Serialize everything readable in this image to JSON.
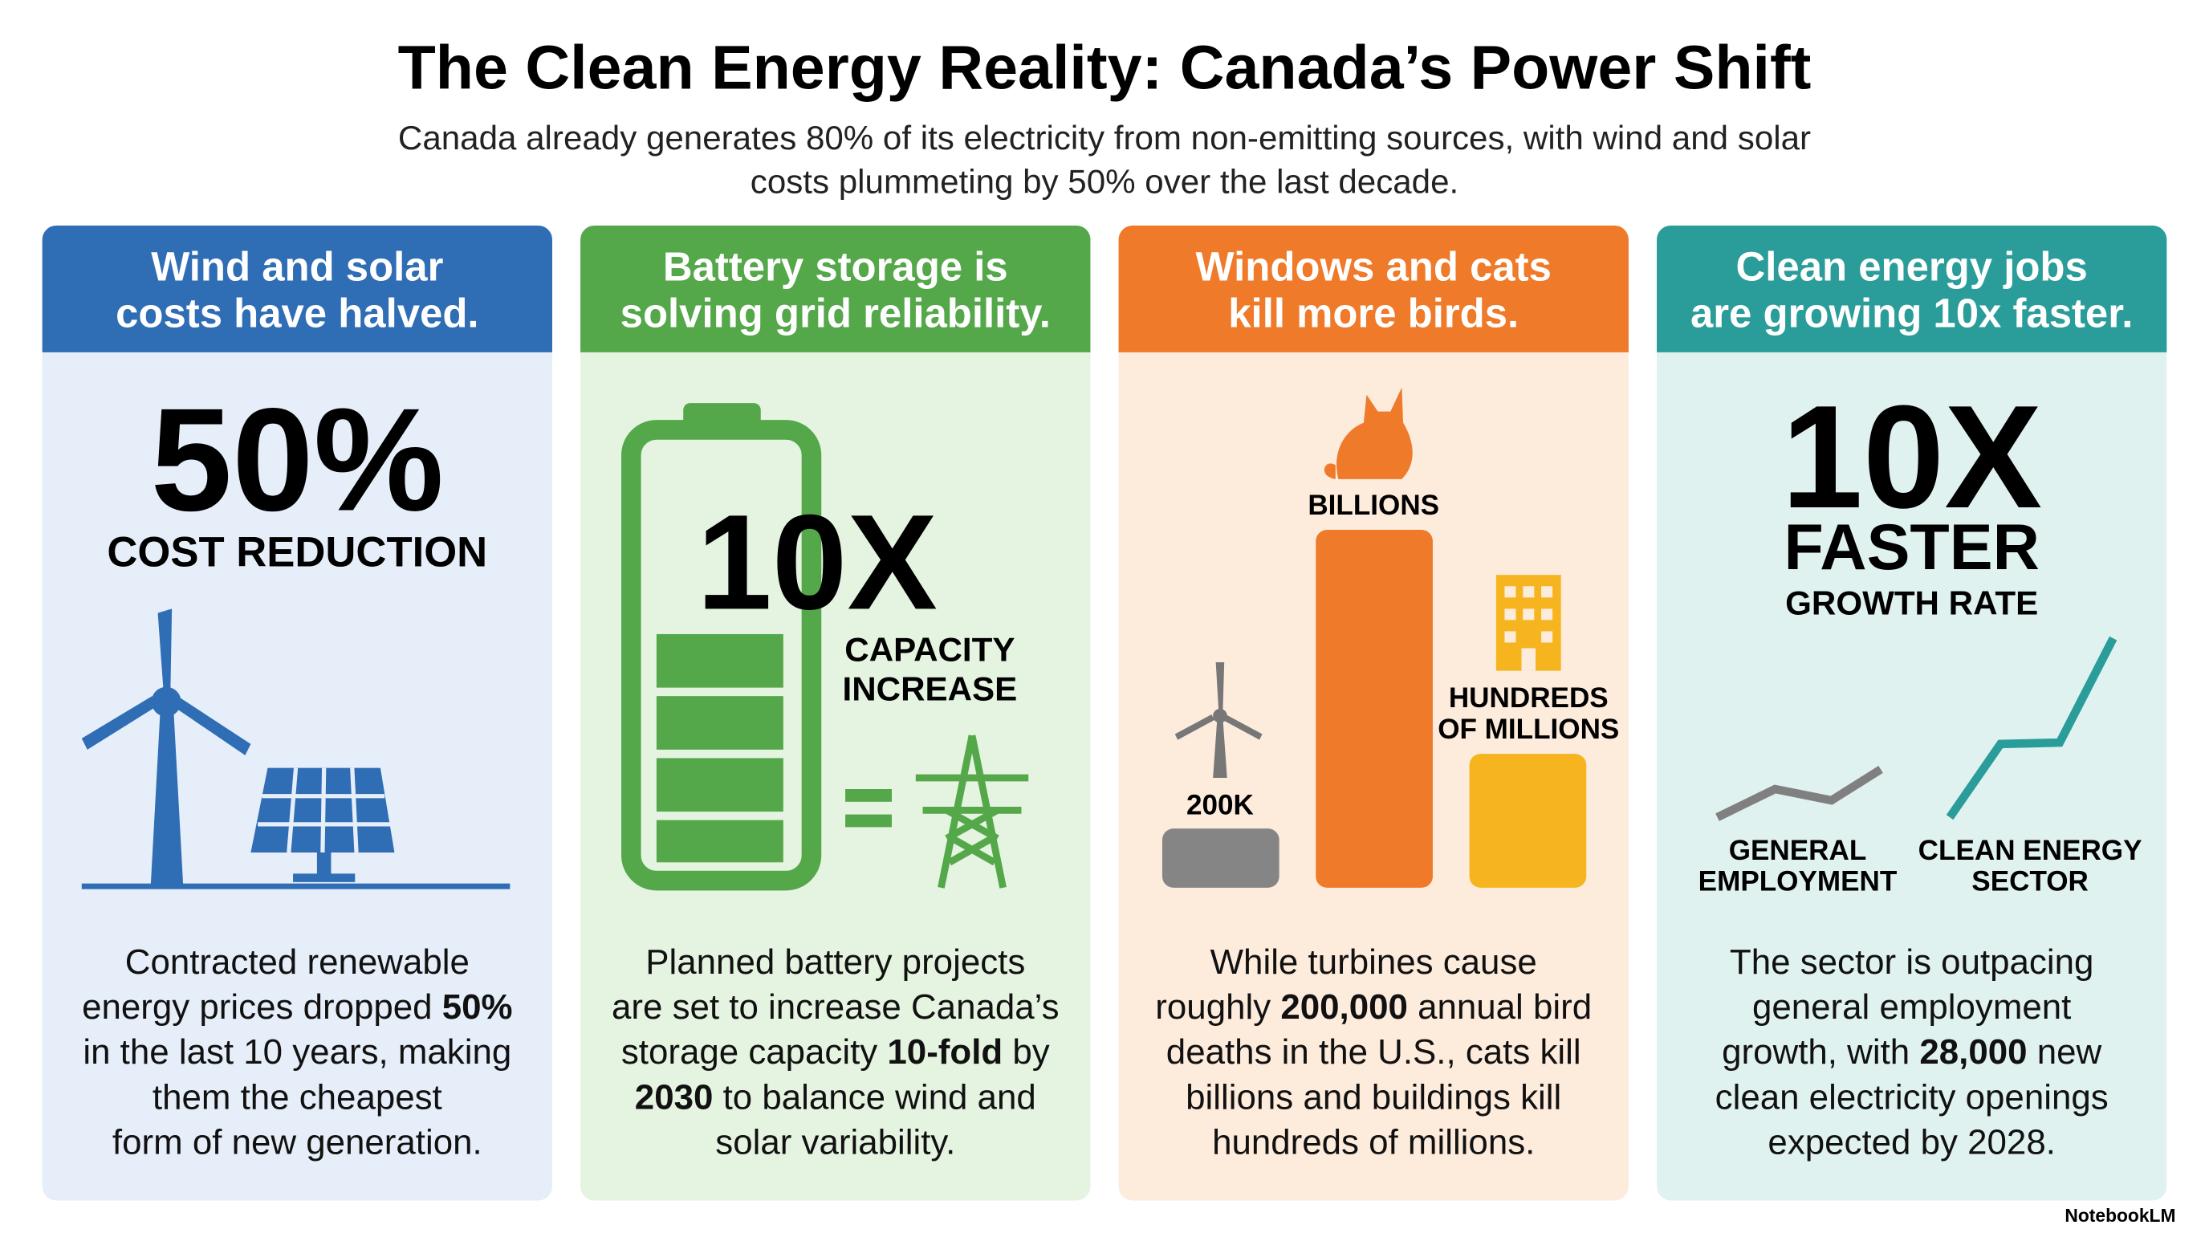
{
  "title": "The Clean Energy Reality: Canada’s Power Shift",
  "subtitle": [
    "Canada already generates 80% of its electricity from non-emitting sources, with wind and solar",
    "costs plummeting by 50% over the last decade."
  ],
  "panels": [
    {
      "color": "#2f6db5",
      "background": "#e6eef9",
      "heading": [
        "Wind and solar",
        "costs have halved."
      ],
      "stat": "50%",
      "stat_caption": "COST REDUCTION",
      "body": [
        [
          {
            "text": "Contracted renewable"
          }
        ],
        [
          {
            "text": "energy prices dropped "
          },
          {
            "text": "50%",
            "bold": true
          }
        ],
        [
          {
            "text": "in the last 10 years, making"
          }
        ],
        [
          {
            "text": "them the cheapest"
          }
        ],
        [
          {
            "text": "form of new generation."
          }
        ]
      ]
    },
    {
      "color": "#55a84a",
      "background": "#e5f3e1",
      "heading": [
        "Battery storage is",
        "solving grid reliability."
      ],
      "stat": "10X",
      "stat_caption": [
        "CAPACITY",
        "INCREASE"
      ],
      "body": [
        [
          {
            "text": "Planned battery projects"
          }
        ],
        [
          {
            "text": "are set to increase Canada’s"
          }
        ],
        [
          {
            "text": "storage capacity "
          },
          {
            "text": "10-fold",
            "bold": true
          },
          {
            "text": " by"
          }
        ],
        [
          {
            "text": "2030",
            "bold": true
          },
          {
            "text": " to balance wind and"
          }
        ],
        [
          {
            "text": "solar variability."
          }
        ]
      ]
    },
    {
      "color": "#ee7a2a",
      "background": "#fdebdc",
      "heading": [
        "Windows and cats",
        "kill more birds."
      ],
      "bar_labels": {
        "cats": "BILLIONS",
        "buildings": [
          "HUNDREDS",
          "OF MILLIONS"
        ],
        "turbines": "200K"
      },
      "body": [
        [
          {
            "text": "While turbines cause"
          }
        ],
        [
          {
            "text": "roughly "
          },
          {
            "text": "200,000",
            "bold": true
          },
          {
            "text": " annual bird"
          }
        ],
        [
          {
            "text": "deaths in the U.S., cats kill"
          }
        ],
        [
          {
            "text": "billions and buildings kill"
          }
        ],
        [
          {
            "text": "hundreds of millions."
          }
        ]
      ]
    },
    {
      "color": "#2a9d9a",
      "background": "#e0f2f0",
      "heading": [
        "Clean energy jobs",
        "are growing 10x faster."
      ],
      "stat": "10X",
      "stat_caption": [
        "FASTER",
        "GROWTH RATE"
      ],
      "line_labels": {
        "general": [
          "GENERAL",
          "EMPLOYMENT"
        ],
        "clean": [
          "CLEAN ENERGY",
          "SECTOR"
        ]
      },
      "body": [
        [
          {
            "text": "The sector is outpacing"
          }
        ],
        [
          {
            "text": "general employment"
          }
        ],
        [
          {
            "text": "growth, with "
          },
          {
            "text": "28,000",
            "bold": true
          },
          {
            "text": " new"
          }
        ],
        [
          {
            "text": "clean electricity openings"
          }
        ],
        [
          {
            "text": "expected by 2028."
          }
        ]
      ]
    }
  ],
  "footer": "NotebookLM"
}
